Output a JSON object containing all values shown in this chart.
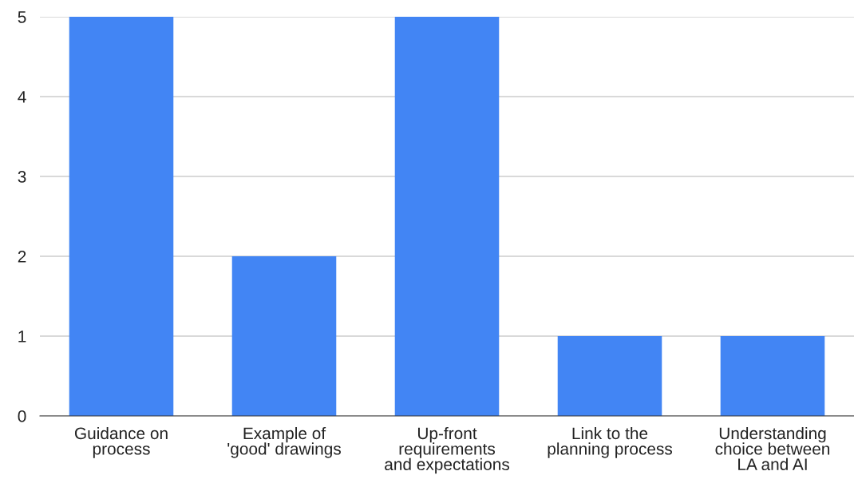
{
  "chart_data": {
    "type": "bar",
    "categories": [
      "Guidance on\nprocess",
      "Example of\n'good' drawings",
      "Up-front\nrequirements\nand expectations",
      "Link to the\nplanning process",
      "Understanding\nchoice between\nLA and AI"
    ],
    "values": [
      5,
      2,
      5,
      1,
      1
    ],
    "color": "#4285f4",
    "ylim": [
      0,
      5
    ],
    "yticks": [
      0,
      1,
      2,
      3,
      4,
      5
    ],
    "grid": "y",
    "legend": false
  }
}
